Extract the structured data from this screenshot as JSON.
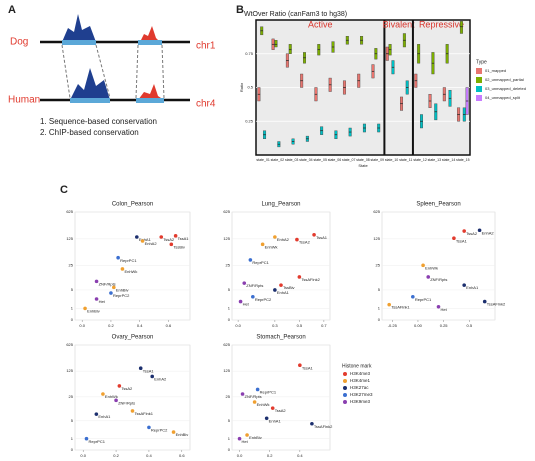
{
  "panel_a": {
    "label": "A",
    "top_species": "Dog",
    "top_chrom": "chr1",
    "bottom_species": "Human",
    "bottom_chrom": "chr4",
    "notes": [
      "1. Sequence-based conservation",
      "2. ChIP-based conservation"
    ]
  },
  "panel_b_label": "B",
  "panel_c_label": "C",
  "histone_legend": {
    "title": "Histone mark",
    "items": [
      {
        "name": "H3K4me3",
        "color": "#e23b2e"
      },
      {
        "name": "H3K4me1",
        "color": "#f0a030"
      },
      {
        "name": "H3K27ac",
        "color": "#1c2f6e"
      },
      {
        "name": "H3K27me3",
        "color": "#3b6fd0"
      },
      {
        "name": "H3K9me3",
        "color": "#8a3fb0"
      }
    ]
  },
  "chart_data": [
    {
      "type": "box",
      "title": "WtOver Ratio (canFam3 to hg38)",
      "section_labels": [
        "Active",
        "Bivalent",
        "Repressive"
      ],
      "x_label": "State",
      "y_label": "Ratio",
      "categories": [
        "state_01",
        "state_02",
        "state_03",
        "state_04",
        "state_05",
        "state_06",
        "state_07",
        "state_08",
        "state_09",
        "state_10",
        "state_11",
        "state_12",
        "state_13",
        "state_14",
        "state_15"
      ],
      "ylim": [
        0,
        1
      ],
      "yticks": [
        0.25,
        0.5,
        0.75
      ],
      "legend_title": "Type",
      "series": [
        {
          "name": "01_mapped",
          "color": "#e8756f",
          "q1": [
            0.4,
            0.78,
            0.65,
            0.5,
            0.4,
            0.47,
            0.45,
            0.5,
            0.57,
            0.7,
            0.33,
            0.5,
            0.35,
            0.4,
            0.25
          ],
          "median": [
            0.45,
            0.82,
            0.7,
            0.55,
            0.45,
            0.52,
            0.5,
            0.55,
            0.62,
            0.75,
            0.38,
            0.55,
            0.4,
            0.45,
            0.3
          ],
          "q3": [
            0.5,
            0.86,
            0.75,
            0.6,
            0.5,
            0.57,
            0.55,
            0.6,
            0.67,
            0.8,
            0.43,
            0.6,
            0.45,
            0.5,
            0.35
          ]
        },
        {
          "name": "02_unmapped_partial",
          "color": "#7cae00",
          "q1": [
            0.89,
            0.8,
            0.75,
            0.68,
            0.74,
            0.76,
            0.82,
            0.82,
            0.71,
            0.74,
            0.8,
            0.68,
            0.6,
            0.68,
            0.9
          ],
          "median": [
            0.92,
            0.82,
            0.78,
            0.72,
            0.78,
            0.8,
            0.85,
            0.85,
            0.75,
            0.78,
            0.85,
            0.75,
            0.68,
            0.75,
            0.95
          ],
          "q3": [
            0.95,
            0.85,
            0.82,
            0.76,
            0.82,
            0.84,
            0.88,
            0.88,
            0.79,
            0.82,
            0.9,
            0.82,
            0.76,
            0.82,
            0.99
          ]
        },
        {
          "name": "03_unmapped_deleted",
          "color": "#00bfc4",
          "q1": [
            0.12,
            0.06,
            0.08,
            0.1,
            0.15,
            0.12,
            0.14,
            0.17,
            0.17,
            0.6,
            0.45,
            0.2,
            0.26,
            0.36,
            0.25
          ],
          "median": [
            0.15,
            0.08,
            0.1,
            0.12,
            0.18,
            0.15,
            0.17,
            0.2,
            0.2,
            0.65,
            0.5,
            0.25,
            0.32,
            0.42,
            0.3
          ],
          "q3": [
            0.18,
            0.1,
            0.12,
            0.14,
            0.21,
            0.18,
            0.2,
            0.23,
            0.23,
            0.7,
            0.55,
            0.3,
            0.38,
            0.48,
            0.35
          ]
        },
        {
          "name": "04_unmapped_split",
          "color": "#c77cff",
          "q1": [
            null,
            null,
            null,
            null,
            null,
            null,
            null,
            null,
            null,
            null,
            null,
            null,
            null,
            null,
            0.3
          ],
          "median": [
            null,
            null,
            null,
            null,
            null,
            null,
            null,
            null,
            null,
            null,
            null,
            null,
            null,
            null,
            0.4
          ],
          "q3": [
            null,
            null,
            null,
            null,
            null,
            null,
            null,
            null,
            null,
            null,
            null,
            null,
            null,
            null,
            0.5
          ]
        }
      ]
    },
    {
      "type": "scatter",
      "title": "Colon_Pearson",
      "xlim": [
        -0.05,
        0.75
      ],
      "xticks": [
        {
          "value": 0,
          "label": "0.0"
        },
        0.2,
        0.4,
        0.6
      ],
      "ylim": [
        0,
        625
      ],
      "yscale": "log1p",
      "yticks": [
        0,
        1,
        5,
        25,
        125,
        625
      ],
      "points": [
        {
          "label": "TssA1",
          "x": 0.65,
          "y": 150,
          "mark": 0
        },
        {
          "label": "TssA2",
          "x": 0.55,
          "y": 140,
          "mark": 0
        },
        {
          "label": "EnhA1",
          "x": 0.38,
          "y": 140,
          "mark": 2
        },
        {
          "label": "EnhA2",
          "x": 0.42,
          "y": 110,
          "mark": 1
        },
        {
          "label": "TssBiv",
          "x": 0.62,
          "y": 90,
          "mark": 0
        },
        {
          "label": "ReprPC1",
          "x": 0.25,
          "y": 40,
          "mark": 3
        },
        {
          "label": "EnhWk",
          "x": 0.28,
          "y": 20,
          "mark": 1
        },
        {
          "label": "ZNF/Rpts",
          "x": 0.1,
          "y": 9,
          "mark": 4
        },
        {
          "label": "EnhBiv",
          "x": 0.22,
          "y": 6,
          "mark": 1
        },
        {
          "label": "ReprPC2",
          "x": 0.2,
          "y": 4,
          "mark": 3
        },
        {
          "label": "Het",
          "x": 0.1,
          "y": 2.5,
          "mark": 4
        },
        {
          "label": "EnhBiv",
          "x": 0.02,
          "y": 1,
          "mark": 1
        }
      ]
    },
    {
      "type": "scatter",
      "title": "Lung_Pearson",
      "xlim": [
        -0.05,
        0.75
      ],
      "xticks": [
        {
          "value": 0,
          "label": "0.0"
        },
        0.3,
        0.5,
        0.7
      ],
      "ylim": [
        0,
        625
      ],
      "yscale": "log1p",
      "yticks": [
        0,
        1,
        5,
        25,
        125,
        625
      ],
      "points": [
        {
          "label": "TssA1",
          "x": 0.62,
          "y": 160,
          "mark": 0
        },
        {
          "label": "TssA2",
          "x": 0.48,
          "y": 120,
          "mark": 0
        },
        {
          "label": "EnhA2",
          "x": 0.3,
          "y": 140,
          "mark": 1
        },
        {
          "label": "EnhWk",
          "x": 0.2,
          "y": 90,
          "mark": 1
        },
        {
          "label": "ReprPC1",
          "x": 0.1,
          "y": 35,
          "mark": 3
        },
        {
          "label": "TssAFlnk2",
          "x": 0.5,
          "y": 12,
          "mark": 0
        },
        {
          "label": "ZNF/Rpts",
          "x": 0.05,
          "y": 8,
          "mark": 4
        },
        {
          "label": "TssBiv",
          "x": 0.35,
          "y": 7,
          "mark": 0
        },
        {
          "label": "EnhA1",
          "x": 0.3,
          "y": 5,
          "mark": 2
        },
        {
          "label": "ReprPC2",
          "x": 0.12,
          "y": 3,
          "mark": 3
        },
        {
          "label": "Het",
          "x": 0.02,
          "y": 2,
          "mark": 4
        }
      ]
    },
    {
      "type": "scatter",
      "title": "Spleen_Pearson",
      "xlim": [
        -0.35,
        0.75
      ],
      "xticks": [
        -0.25,
        {
          "value": 0,
          "label": "0.00"
        },
        0.25,
        0.5
      ],
      "ylim": [
        0,
        625
      ],
      "yscale": "log1p",
      "yticks": [
        0,
        1,
        5,
        25,
        125,
        625
      ],
      "points": [
        {
          "label": "TssA2",
          "x": 0.45,
          "y": 200,
          "mark": 0
        },
        {
          "label": "EnhA2",
          "x": 0.6,
          "y": 210,
          "mark": 2
        },
        {
          "label": "TssA1",
          "x": 0.35,
          "y": 130,
          "mark": 0
        },
        {
          "label": "EnhWk",
          "x": 0.05,
          "y": 25,
          "mark": 1
        },
        {
          "label": "ZNF/Rpts",
          "x": 0.1,
          "y": 12,
          "mark": 4
        },
        {
          "label": "EnhA1",
          "x": 0.45,
          "y": 7,
          "mark": 2
        },
        {
          "label": "ReprPC1",
          "x": -0.05,
          "y": 3,
          "mark": 3
        },
        {
          "label": "TssAFlnk2",
          "x": 0.65,
          "y": 2,
          "mark": 2
        },
        {
          "label": "TssAFlnk1",
          "x": -0.28,
          "y": 1.5,
          "mark": 1
        },
        {
          "label": "Het",
          "x": 0.2,
          "y": 1.2,
          "mark": 4
        }
      ]
    },
    {
      "type": "scatter",
      "title": "Ovary_Pearson",
      "xlim": [
        -0.05,
        0.65
      ],
      "xticks": [
        {
          "value": 0,
          "label": "0.0"
        },
        0.2,
        0.4,
        0.6
      ],
      "ylim": [
        0,
        625
      ],
      "yscale": "log1p",
      "yticks": [
        0,
        1,
        5,
        25,
        125,
        625
      ],
      "points": [
        {
          "label": "TssA1",
          "x": 0.35,
          "y": 150,
          "mark": 2
        },
        {
          "label": "EnhA2",
          "x": 0.42,
          "y": 90,
          "mark": 2
        },
        {
          "label": "TssA2",
          "x": 0.22,
          "y": 50,
          "mark": 0
        },
        {
          "label": "EnhWk",
          "x": 0.12,
          "y": 30,
          "mark": 1
        },
        {
          "label": "ZNF/Rpts",
          "x": 0.2,
          "y": 20,
          "mark": 4
        },
        {
          "label": "TssAFlnk1",
          "x": 0.3,
          "y": 10,
          "mark": 1
        },
        {
          "label": "EnhA1",
          "x": 0.08,
          "y": 8,
          "mark": 2
        },
        {
          "label": "ReprPC2",
          "x": 0.4,
          "y": 3,
          "mark": 3
        },
        {
          "label": "EnhBiv",
          "x": 0.55,
          "y": 2,
          "mark": 1
        },
        {
          "label": "ReprPC1",
          "x": 0.02,
          "y": 1,
          "mark": 3
        }
      ]
    },
    {
      "type": "scatter",
      "title": "Stomach_Pearson",
      "xlim": [
        -0.05,
        0.6
      ],
      "xticks": [
        {
          "value": 0,
          "label": "0.0"
        },
        0.2,
        0.4
      ],
      "ylim": [
        0,
        625
      ],
      "yscale": "log1p",
      "yticks": [
        0,
        1,
        5,
        25,
        125,
        625
      ],
      "points": [
        {
          "label": "TssA1",
          "x": 0.4,
          "y": 180,
          "mark": 0
        },
        {
          "label": "ReprPC1",
          "x": 0.12,
          "y": 40,
          "mark": 3
        },
        {
          "label": "ZNF/Rpts",
          "x": 0.02,
          "y": 30,
          "mark": 4
        },
        {
          "label": "EnhWk",
          "x": 0.1,
          "y": 18,
          "mark": 1
        },
        {
          "label": "TssA2",
          "x": 0.22,
          "y": 12,
          "mark": 0
        },
        {
          "label": "EnhA1",
          "x": 0.18,
          "y": 6,
          "mark": 2
        },
        {
          "label": "TssAFlnk2",
          "x": 0.48,
          "y": 4,
          "mark": 2
        },
        {
          "label": "EnhBiv",
          "x": 0.05,
          "y": 1.5,
          "mark": 1
        },
        {
          "label": "Het",
          "x": 0.0,
          "y": 1,
          "mark": 4
        }
      ]
    }
  ]
}
